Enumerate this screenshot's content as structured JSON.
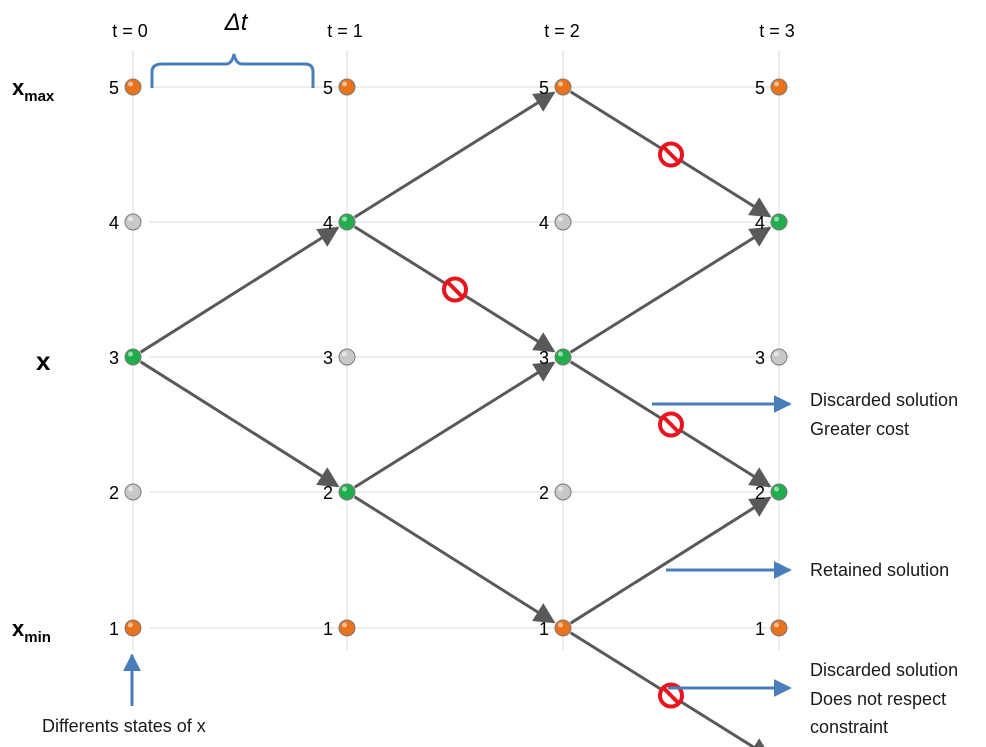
{
  "time_labels": [
    "t = 0",
    "t = 1",
    "t = 2",
    "t = 3"
  ],
  "delta_label": "Δt",
  "state_labels": [
    "1",
    "2",
    "3",
    "4",
    "5"
  ],
  "axis": {
    "x_main": "x",
    "x_max_base": "x",
    "x_max_sub": "max",
    "x_min_base": "x",
    "x_min_sub": "min"
  },
  "colors": {
    "boundary_node": "#e8731c",
    "inactive_node": "#c8c8c8",
    "active_node": "#1fae4b",
    "edge": "#595959",
    "grid": "#d9d9d9",
    "note_arrow": "#4a7ebb",
    "forbidden": "#e8141e"
  },
  "nodes": [
    {
      "t": 0,
      "x": 5,
      "kind": "boundary"
    },
    {
      "t": 0,
      "x": 4,
      "kind": "inactive"
    },
    {
      "t": 0,
      "x": 3,
      "kind": "active"
    },
    {
      "t": 0,
      "x": 2,
      "kind": "inactive"
    },
    {
      "t": 0,
      "x": 1,
      "kind": "boundary"
    },
    {
      "t": 1,
      "x": 5,
      "kind": "boundary"
    },
    {
      "t": 1,
      "x": 4,
      "kind": "active"
    },
    {
      "t": 1,
      "x": 3,
      "kind": "inactive"
    },
    {
      "t": 1,
      "x": 2,
      "kind": "active"
    },
    {
      "t": 1,
      "x": 1,
      "kind": "boundary"
    },
    {
      "t": 2,
      "x": 5,
      "kind": "boundary"
    },
    {
      "t": 2,
      "x": 4,
      "kind": "inactive"
    },
    {
      "t": 2,
      "x": 3,
      "kind": "active"
    },
    {
      "t": 2,
      "x": 2,
      "kind": "inactive"
    },
    {
      "t": 2,
      "x": 1,
      "kind": "boundary"
    },
    {
      "t": 3,
      "x": 5,
      "kind": "boundary"
    },
    {
      "t": 3,
      "x": 4,
      "kind": "active"
    },
    {
      "t": 3,
      "x": 3,
      "kind": "inactive"
    },
    {
      "t": 3,
      "x": 2,
      "kind": "active"
    },
    {
      "t": 3,
      "x": 1,
      "kind": "boundary"
    }
  ],
  "edges": [
    {
      "from": [
        0,
        3
      ],
      "to": [
        1,
        4
      ],
      "discarded": false
    },
    {
      "from": [
        0,
        3
      ],
      "to": [
        1,
        2
      ],
      "discarded": false
    },
    {
      "from": [
        1,
        4
      ],
      "to": [
        2,
        5
      ],
      "discarded": false
    },
    {
      "from": [
        1,
        4
      ],
      "to": [
        2,
        3
      ],
      "discarded": true
    },
    {
      "from": [
        1,
        2
      ],
      "to": [
        2,
        3
      ],
      "discarded": false
    },
    {
      "from": [
        1,
        2
      ],
      "to": [
        2,
        1
      ],
      "discarded": false
    },
    {
      "from": [
        2,
        5
      ],
      "to": [
        3,
        4
      ],
      "discarded": true
    },
    {
      "from": [
        2,
        3
      ],
      "to": [
        3,
        4
      ],
      "discarded": false
    },
    {
      "from": [
        2,
        3
      ],
      "to": [
        3,
        2
      ],
      "discarded": true
    },
    {
      "from": [
        2,
        1
      ],
      "to": [
        3,
        2
      ],
      "discarded": false
    },
    {
      "from": [
        2,
        1
      ],
      "to": [
        3,
        0
      ],
      "discarded": true
    }
  ],
  "annotations": {
    "discarded_cost_line1": "Discarded solution",
    "discarded_cost_line2": "Greater cost",
    "retained": "Retained solution",
    "discarded_constraint_line1": "Discarded solution",
    "discarded_constraint_line2": "Does not respect",
    "discarded_constraint_line3": "constraint",
    "states_caption": "Differents states of x"
  }
}
